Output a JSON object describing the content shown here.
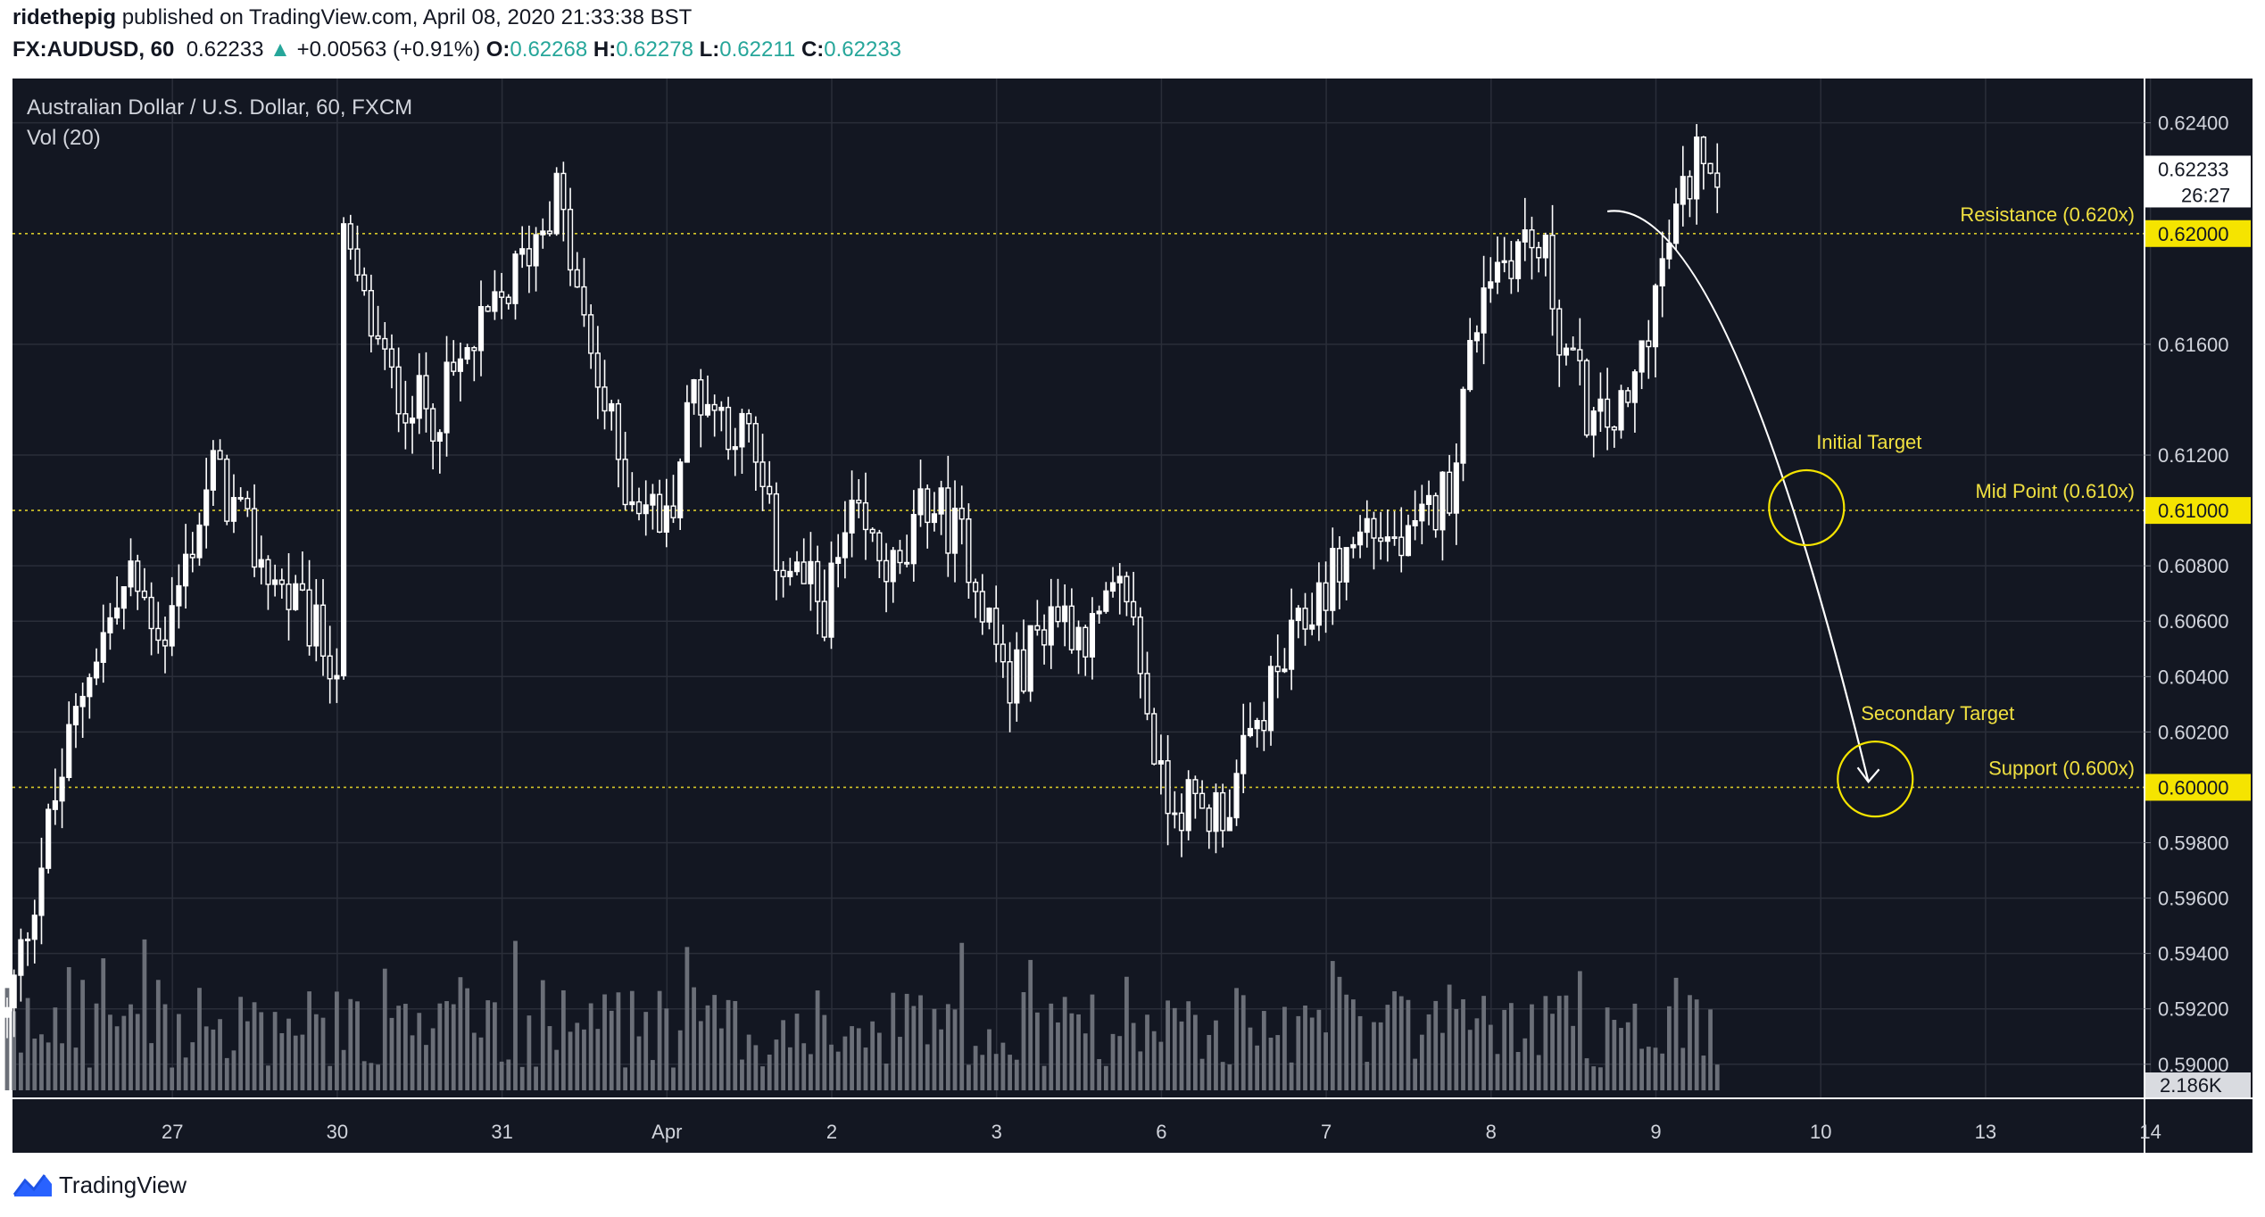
{
  "header": {
    "author": "ridethepig",
    "published_text": "published on TradingView.com, April 08, 2020 21:33:38 BST",
    "symbol": "FX:AUDUSD, 60",
    "last": "0.62233",
    "change": "+0.00563 (+0.91%)",
    "o_label": "O:",
    "o_value": "0.62268",
    "h_label": "H:",
    "h_value": "0.62278",
    "l_label": "L:",
    "l_value": "0.62211",
    "c_label": "C:",
    "c_value": "0.62233"
  },
  "chart_data": {
    "type": "candlestick",
    "title": "Australian Dollar / U.S. Dollar, 60, FXCM",
    "indicator_label": "Vol (20)",
    "background": "#131722",
    "y_range": [
      0.5888,
      0.6256
    ],
    "y_ticks": [
      "0.62400",
      "0.61600",
      "0.61200",
      "0.60800",
      "0.60600",
      "0.60400",
      "0.60200",
      "0.59800",
      "0.59600",
      "0.59400",
      "0.59200",
      "0.59000"
    ],
    "x_labels": [
      "27",
      "30",
      "31",
      "Apr",
      "2",
      "3",
      "6",
      "7",
      "8",
      "9",
      "10",
      "13",
      "14"
    ],
    "current_price": "0.62233",
    "countdown": "26:27",
    "volume_label": "2.186K",
    "levels": [
      {
        "price": 0.62,
        "label": "Resistance (0.620x)",
        "tag": "0.62000"
      },
      {
        "price": 0.61,
        "label": "Mid Point (0.610x)",
        "tag": "0.61000"
      },
      {
        "price": 0.6,
        "label": "Support (0.600x)",
        "tag": "0.60000"
      }
    ],
    "annotations": [
      {
        "label": "Initial Target",
        "price": 0.6101,
        "date": "2020-04-09 22:00"
      },
      {
        "label": "Secondary Target",
        "price": 0.6003,
        "date": "2020-04-10 08:00"
      }
    ],
    "projection": {
      "from": [
        "2020-04-08 17:00",
        0.6208
      ],
      "to": [
        "2020-04-10 07:00",
        0.6002
      ]
    },
    "path_keypoints": [
      [
        "2020-03-26 00:00",
        0.5917
      ],
      [
        "2020-03-26 06:00",
        0.5985
      ],
      [
        "2020-03-26 12:00",
        0.6045
      ],
      [
        "2020-03-26 18:00",
        0.6075
      ],
      [
        "2020-03-26 23:00",
        0.6055
      ],
      [
        "2020-03-27 06:00",
        0.6115
      ],
      [
        "2020-03-27 12:00",
        0.6085
      ],
      [
        "2020-03-27 18:00",
        0.6065
      ],
      [
        "2020-03-28 00:00",
        0.6045
      ],
      [
        "2020-03-30 00:00",
        0.6125
      ],
      [
        "2020-03-30 01:00",
        0.6195
      ],
      [
        "2020-03-30 08:00",
        0.6145
      ],
      [
        "2020-03-30 14:00",
        0.6135
      ],
      [
        "2020-03-31 00:00",
        0.6175
      ],
      [
        "2020-03-31 08:00",
        0.6215
      ],
      [
        "2020-03-31 12:00",
        0.6165
      ],
      [
        "2020-03-31 18:00",
        0.611
      ],
      [
        "2020-04-01 00:00",
        0.6095
      ],
      [
        "2020-04-01 04:00",
        0.6145
      ],
      [
        "2020-04-01 12:00",
        0.6125
      ],
      [
        "2020-04-01 16:00",
        0.6085
      ],
      [
        "2020-04-01 23:00",
        0.6065
      ],
      [
        "2020-04-02 03:00",
        0.6095
      ],
      [
        "2020-04-02 10:00",
        0.6075
      ],
      [
        "2020-04-02 14:00",
        0.6105
      ],
      [
        "2020-04-02 20:00",
        0.6085
      ],
      [
        "2020-04-03 02:00",
        0.6035
      ],
      [
        "2020-04-03 08:00",
        0.6065
      ],
      [
        "2020-04-03 14:00",
        0.6055
      ],
      [
        "2020-04-03 19:00",
        0.6072
      ],
      [
        "2020-04-03 23:00",
        0.6015
      ],
      [
        "2020-04-05 22:00",
        0.6
      ],
      [
        "2020-04-06 06:00",
        0.599
      ],
      [
        "2020-04-06 10:00",
        0.5995
      ],
      [
        "2020-04-06 16:00",
        0.6035
      ],
      [
        "2020-04-06 23:00",
        0.607
      ],
      [
        "2020-04-07 06:00",
        0.6095
      ],
      [
        "2020-04-07 12:00",
        0.6085
      ],
      [
        "2020-04-07 18:00",
        0.611
      ],
      [
        "2020-04-07 23:00",
        0.6185
      ],
      [
        "2020-04-08 05:00",
        0.6198
      ],
      [
        "2020-04-08 08:00",
        0.619
      ],
      [
        "2020-04-08 10:00",
        0.6165
      ],
      [
        "2020-04-08 15:00",
        0.613
      ],
      [
        "2020-04-08 20:00",
        0.6135
      ],
      [
        "2020-04-08 23:00",
        0.617
      ],
      [
        "2020-04-09 03:00",
        0.6205
      ],
      [
        "2020-04-09 07:00",
        0.6235
      ],
      [
        "2020-04-09 09:00",
        0.6223
      ]
    ]
  },
  "footer": {
    "brand": "TradingView"
  }
}
